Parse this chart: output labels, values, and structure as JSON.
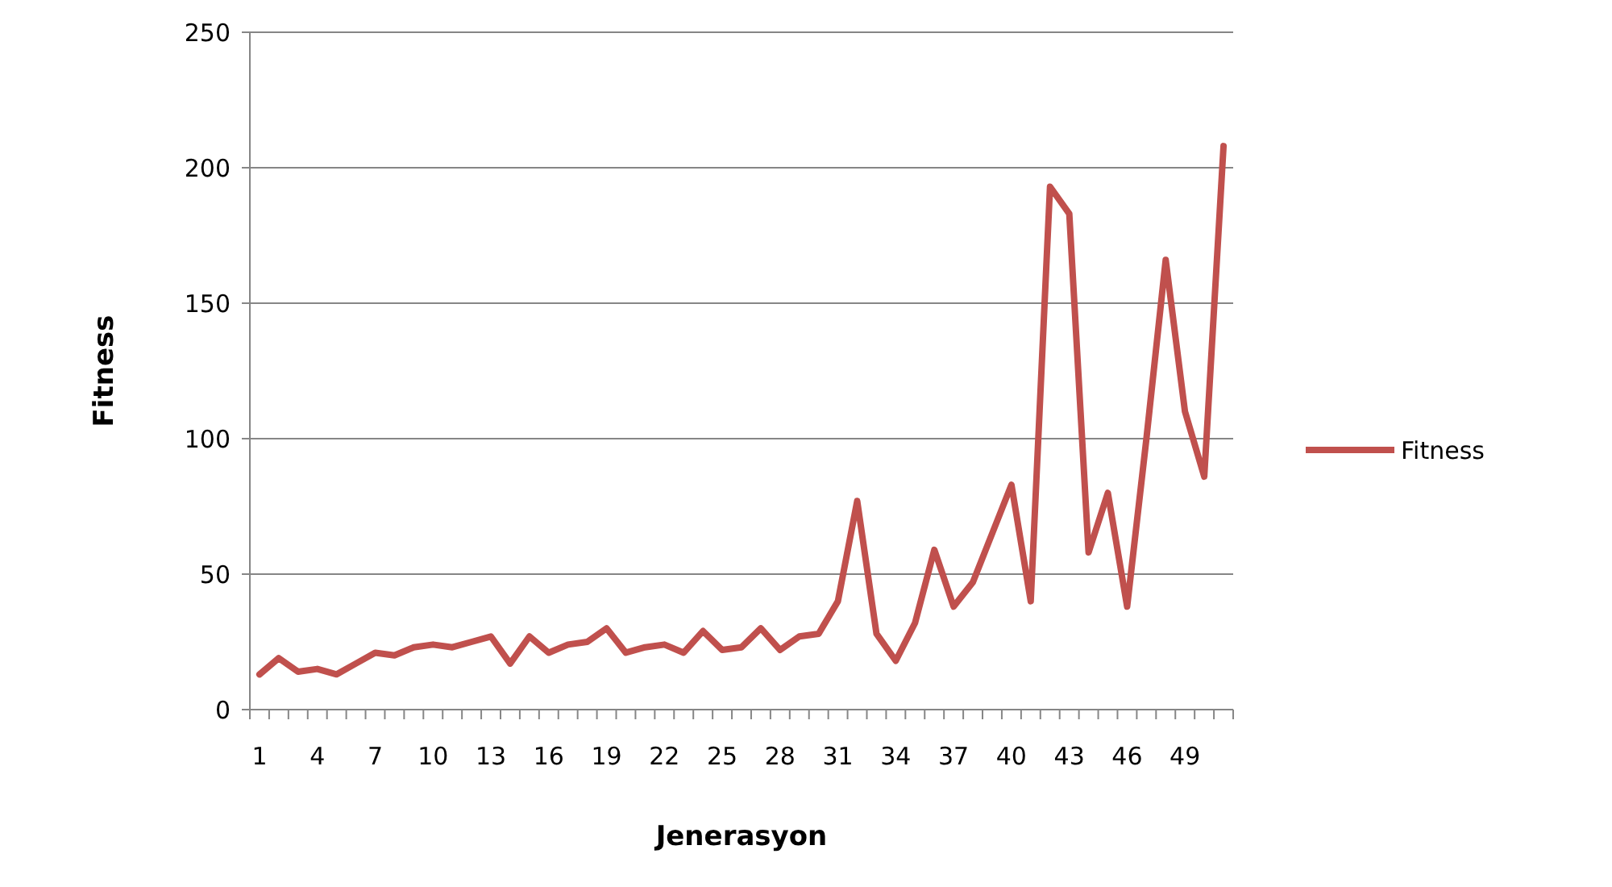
{
  "chart_data": {
    "type": "line",
    "xlabel": "Jenerasyon",
    "ylabel": "Fitness",
    "categories": [
      "1",
      null,
      null,
      "4",
      null,
      null,
      "7",
      null,
      null,
      "10",
      null,
      null,
      "13",
      null,
      null,
      "16",
      null,
      null,
      "19",
      null,
      null,
      "22",
      null,
      null,
      "25",
      null,
      null,
      "28",
      null,
      null,
      "31",
      null,
      null,
      "34",
      null,
      null,
      "37",
      null,
      null,
      "40",
      null,
      null,
      "43",
      null,
      null,
      "46",
      null,
      null,
      "49",
      null,
      null
    ],
    "series": [
      {
        "name": "Fitness",
        "color": "#c0504d",
        "values": [
          13,
          19,
          14,
          15,
          13,
          17,
          21,
          20,
          23,
          24,
          23,
          25,
          27,
          17,
          27,
          21,
          24,
          25,
          30,
          21,
          23,
          24,
          21,
          29,
          22,
          23,
          30,
          22,
          27,
          28,
          40,
          77,
          28,
          18,
          32,
          59,
          38,
          47,
          65,
          83,
          40,
          193,
          183,
          58,
          80,
          38,
          100,
          166,
          110,
          86,
          208
        ]
      }
    ],
    "ylim": [
      0,
      250
    ],
    "yticks": [
      0,
      50,
      100,
      150,
      200,
      250
    ],
    "grid": "y",
    "legend": "right",
    "marker": "none",
    "line_style": "solid"
  }
}
